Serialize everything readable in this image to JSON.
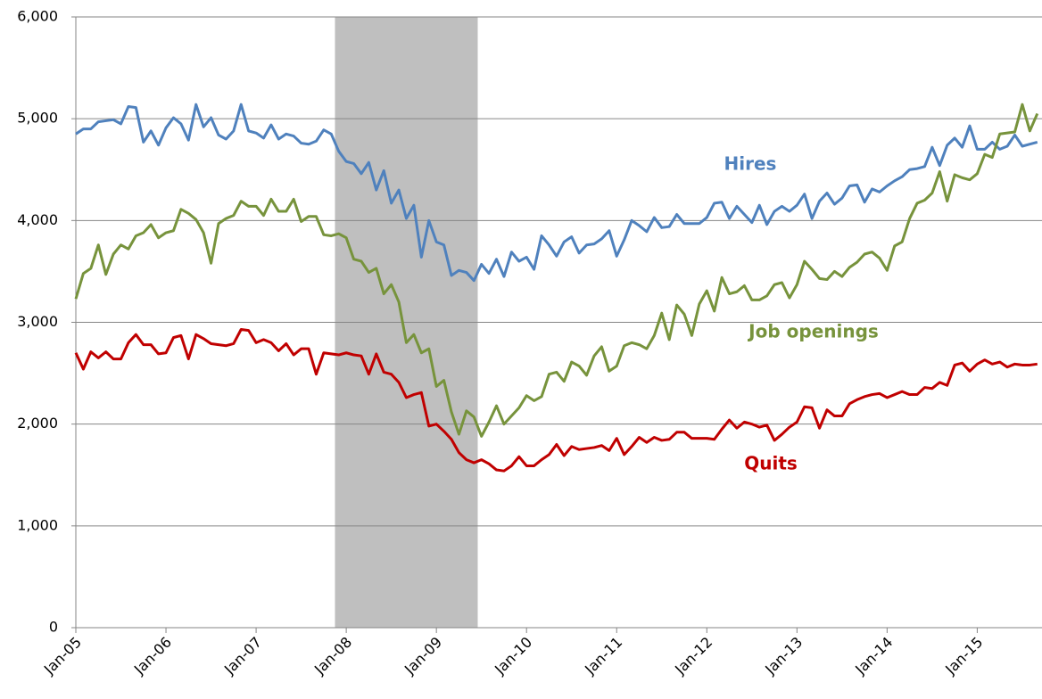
{
  "chart_data": {
    "type": "line",
    "categories": [
      "Jan-05",
      null,
      null,
      null,
      null,
      null,
      null,
      null,
      null,
      null,
      null,
      null,
      "Jan-06",
      null,
      null,
      null,
      null,
      null,
      null,
      null,
      null,
      null,
      null,
      null,
      "Jan-07",
      null,
      null,
      null,
      null,
      null,
      null,
      null,
      null,
      null,
      null,
      null,
      "Jan-08",
      null,
      null,
      null,
      null,
      null,
      null,
      null,
      null,
      null,
      null,
      null,
      "Jan-09",
      null,
      null,
      null,
      null,
      null,
      null,
      null,
      null,
      null,
      null,
      null,
      "Jan-10",
      null,
      null,
      null,
      null,
      null,
      null,
      null,
      null,
      null,
      null,
      null,
      "Jan-11",
      null,
      null,
      null,
      null,
      null,
      null,
      null,
      null,
      null,
      null,
      null,
      "Jan-12",
      null,
      null,
      null,
      null,
      null,
      null,
      null,
      null,
      null,
      null,
      null,
      "Jan-13",
      null,
      null,
      null,
      null,
      null,
      null,
      null,
      null,
      null,
      null,
      null,
      "Jan-14",
      null,
      null,
      null,
      null,
      null,
      null,
      null,
      null,
      null,
      null,
      null,
      "Jan-15",
      null,
      null,
      null,
      null,
      null,
      null,
      null,
      null
    ],
    "series": [
      {
        "name": "Hires",
        "color": "#4f81bd",
        "values": [
          4850,
          4900,
          4900,
          4970,
          4980,
          4990,
          4950,
          5120,
          5110,
          4770,
          4880,
          4740,
          4910,
          5010,
          4950,
          4790,
          5140,
          4920,
          5010,
          4840,
          4800,
          4880,
          5140,
          4880,
          4860,
          4810,
          4940,
          4800,
          4850,
          4830,
          4760,
          4750,
          4780,
          4890,
          4850,
          4680,
          4580,
          4560,
          4460,
          4570,
          4300,
          4490,
          4170,
          4300,
          4020,
          4150,
          3640,
          4000,
          3790,
          3760,
          3460,
          3510,
          3490,
          3410,
          3570,
          3480,
          3620,
          3450,
          3690,
          3600,
          3640,
          3520,
          3850,
          3760,
          3650,
          3790,
          3840,
          3680,
          3760,
          3770,
          3820,
          3900,
          3650,
          3810,
          4000,
          3950,
          3890,
          4030,
          3930,
          3940,
          4060,
          3970,
          3970,
          3970,
          4030,
          4170,
          4180,
          4020,
          4140,
          4060,
          3980,
          4150,
          3960,
          4090,
          4140,
          4090,
          4150,
          4260,
          4020,
          4190,
          4270,
          4160,
          4220,
          4340,
          4350,
          4180,
          4310,
          4280,
          4340,
          4390,
          4430,
          4500,
          4510,
          4530,
          4720,
          4540,
          4740,
          4810,
          4720,
          4930,
          4700,
          4700,
          4770,
          4700,
          4730,
          4840,
          4730,
          4750,
          4770
        ]
      },
      {
        "name": "Job openings",
        "color": "#77933c",
        "values": [
          3230,
          3480,
          3530,
          3760,
          3470,
          3670,
          3760,
          3720,
          3850,
          3880,
          3960,
          3830,
          3880,
          3900,
          4110,
          4070,
          4010,
          3880,
          3580,
          3970,
          4020,
          4050,
          4190,
          4140,
          4140,
          4050,
          4210,
          4090,
          4090,
          4210,
          3990,
          4040,
          4040,
          3860,
          3850,
          3870,
          3830,
          3620,
          3600,
          3490,
          3530,
          3280,
          3370,
          3200,
          2800,
          2880,
          2700,
          2740,
          2370,
          2430,
          2120,
          1900,
          2130,
          2070,
          1880,
          2020,
          2180,
          2000,
          2080,
          2160,
          2280,
          2230,
          2270,
          2490,
          2510,
          2420,
          2610,
          2570,
          2480,
          2670,
          2760,
          2520,
          2570,
          2770,
          2800,
          2780,
          2740,
          2870,
          3090,
          2830,
          3170,
          3080,
          2870,
          3180,
          3310,
          3110,
          3440,
          3280,
          3300,
          3360,
          3220,
          3220,
          3260,
          3370,
          3390,
          3240,
          3370,
          3600,
          3520,
          3430,
          3420,
          3500,
          3450,
          3540,
          3590,
          3670,
          3690,
          3630,
          3510,
          3750,
          3790,
          4020,
          4170,
          4200,
          4270,
          4480,
          4190,
          4450,
          4420,
          4400,
          4460,
          4650,
          4620,
          4850,
          4860,
          4870,
          5140,
          4880,
          5050
        ]
      },
      {
        "name": "Quits",
        "color": "#c00000",
        "values": [
          2700,
          2540,
          2710,
          2650,
          2710,
          2640,
          2640,
          2800,
          2880,
          2780,
          2780,
          2690,
          2700,
          2850,
          2870,
          2640,
          2880,
          2840,
          2790,
          2780,
          2770,
          2790,
          2930,
          2920,
          2800,
          2830,
          2800,
          2720,
          2790,
          2680,
          2740,
          2740,
          2490,
          2700,
          2690,
          2680,
          2700,
          2680,
          2670,
          2490,
          2690,
          2510,
          2490,
          2410,
          2260,
          2290,
          2310,
          1980,
          2000,
          1930,
          1850,
          1720,
          1650,
          1620,
          1650,
          1610,
          1550,
          1540,
          1590,
          1680,
          1590,
          1590,
          1650,
          1700,
          1800,
          1690,
          1780,
          1750,
          1760,
          1770,
          1790,
          1740,
          1860,
          1700,
          1780,
          1870,
          1820,
          1870,
          1840,
          1850,
          1920,
          1920,
          1860,
          1860,
          1860,
          1850,
          1950,
          2040,
          1960,
          2020,
          2000,
          1970,
          1990,
          1840,
          1900,
          1970,
          2020,
          2170,
          2160,
          1960,
          2140,
          2080,
          2080,
          2200,
          2240,
          2270,
          2290,
          2300,
          2260,
          2290,
          2320,
          2290,
          2290,
          2360,
          2350,
          2410,
          2380,
          2580,
          2600,
          2520,
          2590,
          2630,
          2590,
          2610,
          2560,
          2590,
          2580,
          2580,
          2590
        ]
      }
    ],
    "shaded_range": [
      34.5,
      53.5
    ],
    "shade_color": "#bfbfbf",
    "ylim": [
      0,
      6000
    ],
    "yticks": [
      0,
      {
        "value": 1000,
        "label": "1,000"
      },
      {
        "value": 2000,
        "label": "2,000"
      },
      {
        "value": 3000,
        "label": "3,000"
      },
      {
        "value": 4000,
        "label": "4,000"
      },
      {
        "value": 5000,
        "label": "5,000"
      },
      {
        "value": 6000,
        "label": "6,000"
      }
    ],
    "grid": true
  }
}
